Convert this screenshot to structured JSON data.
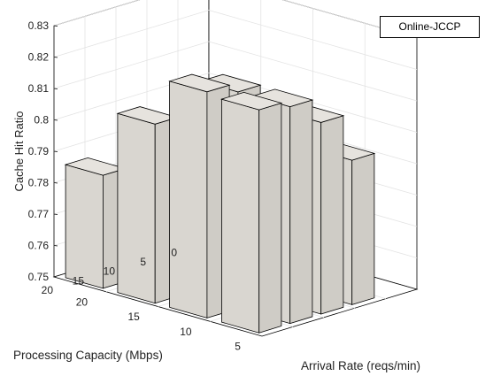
{
  "chart_data": {
    "type": "bar3d",
    "title": "",
    "zlabel": "Cache Hit Ratio",
    "xlabel": "Arrival Rate (reqs/min)",
    "ylabel": "Processing Capacity (Mbps)",
    "x_ticks": [
      "20",
      "15",
      "10",
      "5"
    ],
    "y_ticks": [
      "20",
      "15",
      "10",
      "5",
      "0"
    ],
    "z_ticks": [
      "0.75",
      "0.76",
      "0.77",
      "0.78",
      "0.79",
      "0.8",
      "0.81",
      "0.82",
      "0.83"
    ],
    "zlim": [
      0.75,
      0.83
    ],
    "grid": true,
    "legend": {
      "entries": [
        "Online-JCCP"
      ],
      "placement": "top-right"
    },
    "bar_color": "#d9d6d0",
    "x": [
      20,
      15,
      10,
      5
    ],
    "y": [
      20,
      15,
      10,
      5
    ],
    "values": [
      [
        0.786,
        0.807,
        0.822,
        0.821
      ],
      [
        0.77,
        0.787,
        0.819,
        0.819
      ],
      [
        0.763,
        0.769,
        0.793,
        0.811
      ],
      [
        0.759,
        0.762,
        0.767,
        0.796
      ]
    ],
    "values_note_axes": "rows = Processing Capacity (20,15,10,5); columns = Arrival Rate (20,15,10,5)"
  },
  "legend_label": "Online-JCCP"
}
